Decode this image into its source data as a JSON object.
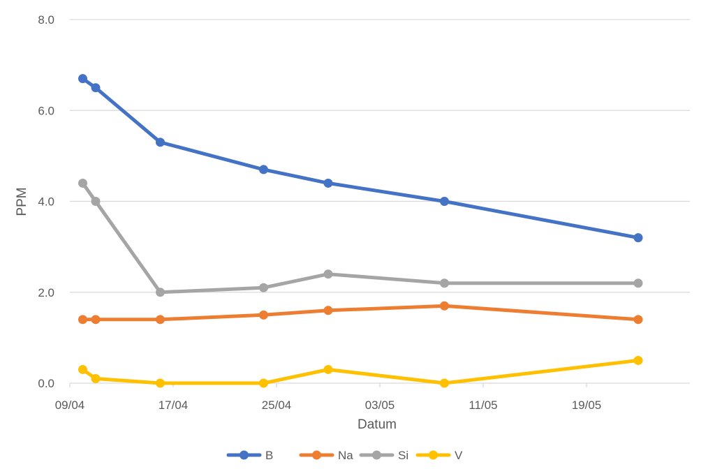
{
  "chart_data": {
    "type": "line",
    "xlabel": "Datum",
    "ylabel": "PPM",
    "ylim": [
      0,
      8
    ],
    "y_ticks": [
      "0.0",
      "2.0",
      "4.0",
      "6.0",
      "8.0"
    ],
    "x_ticks": [
      "09/04",
      "17/04",
      "25/04",
      "03/05",
      "11/05",
      "19/05"
    ],
    "x_range": [
      "09/04",
      "27/05"
    ],
    "x_dates": [
      "10/04",
      "11/04",
      "16/04",
      "24/04",
      "29/04",
      "08/05",
      "23/05"
    ],
    "grid": true,
    "legend_position": "bottom",
    "series": [
      {
        "name": "B",
        "color": "#4472C4",
        "values": [
          6.7,
          6.5,
          5.3,
          4.7,
          4.4,
          4.0,
          3.2
        ]
      },
      {
        "name": "Na",
        "color": "#ED7D31",
        "values": [
          1.4,
          1.4,
          1.4,
          1.5,
          1.6,
          1.7,
          1.4
        ]
      },
      {
        "name": "Si",
        "color": "#A5A5A5",
        "values": [
          4.4,
          4.0,
          2.0,
          2.1,
          2.4,
          2.2,
          2.2
        ]
      },
      {
        "name": "V",
        "color": "#FFC000",
        "values": [
          0.3,
          0.1,
          0.0,
          0.0,
          0.3,
          0.0,
          0.5
        ]
      }
    ]
  }
}
